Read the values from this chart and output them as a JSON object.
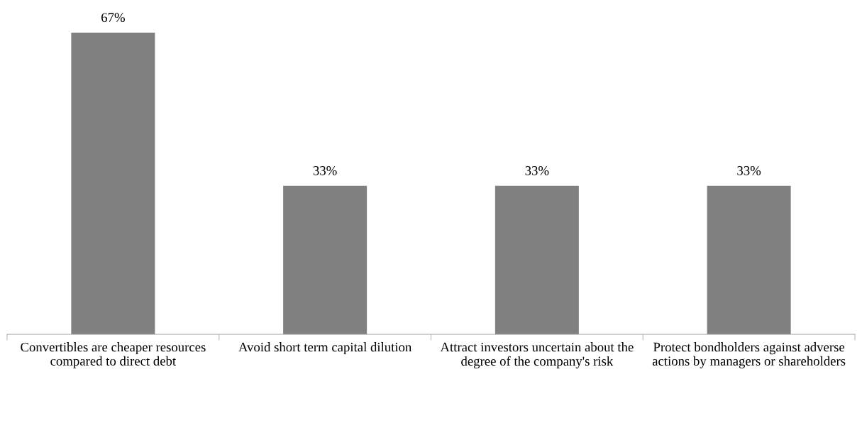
{
  "chart_data": {
    "type": "bar",
    "categories": [
      "Convertibles are cheaper resources compared to direct debt",
      "Avoid short term capital dilution",
      "Attract investors uncertain about the degree of the company's risk",
      "Protect bondholders against adverse actions by managers or shareholders"
    ],
    "values": [
      67,
      33,
      33,
      33
    ],
    "value_labels": [
      "67%",
      "33%",
      "33%",
      "33%"
    ],
    "color": "#808080"
  }
}
